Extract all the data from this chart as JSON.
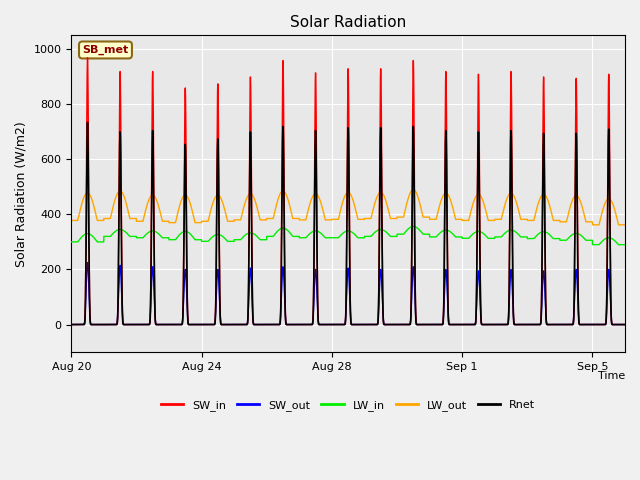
{
  "title": "Solar Radiation",
  "xlabel": "Time",
  "ylabel": "Solar Radiation (W/m2)",
  "ylim": [
    -100,
    1050
  ],
  "background_color": "#f0f0f0",
  "plot_bg_color": "#e8e8e8",
  "label_box_text": "SB_met",
  "label_box_color": "#ffffcc",
  "label_box_edge": "#8b6914",
  "series": {
    "SW_in": {
      "color": "#ff0000",
      "lw": 1.0
    },
    "SW_out": {
      "color": "#0000ff",
      "lw": 1.0
    },
    "LW_in": {
      "color": "#00ee00",
      "lw": 1.0
    },
    "LW_out": {
      "color": "#ffa500",
      "lw": 1.0
    },
    "Rnet": {
      "color": "#000000",
      "lw": 1.2
    }
  },
  "x_ticks": [
    0,
    4,
    8,
    12,
    16
  ],
  "x_tick_labels": [
    "Aug 20",
    "Aug 24",
    "Aug 28",
    "Sep 1",
    "Sep 5"
  ],
  "grid_color": "#ffffff",
  "num_days": 17,
  "SW_in_peak": [
    970,
    920,
    920,
    860,
    875,
    900,
    960,
    915,
    930,
    930,
    960,
    920,
    910,
    920,
    900,
    895,
    910
  ],
  "SW_out_peak": [
    225,
    215,
    210,
    200,
    200,
    205,
    210,
    200,
    205,
    200,
    210,
    200,
    195,
    200,
    195,
    200,
    200
  ],
  "LW_in_base": [
    300,
    320,
    315,
    308,
    302,
    308,
    320,
    315,
    315,
    320,
    328,
    318,
    313,
    318,
    312,
    306,
    290
  ],
  "LW_in_hump": [
    30,
    25,
    25,
    30,
    25,
    25,
    30,
    25,
    25,
    25,
    28,
    25,
    25,
    25,
    25,
    25,
    25
  ],
  "LW_out_base": [
    378,
    385,
    375,
    370,
    375,
    380,
    385,
    380,
    382,
    385,
    390,
    382,
    378,
    382,
    378,
    373,
    362
  ],
  "LW_out_hump": [
    100,
    100,
    95,
    100,
    95,
    95,
    100,
    95,
    98,
    95,
    100,
    95,
    95,
    95,
    95,
    95,
    95
  ],
  "Rnet_peak": [
    735,
    700,
    705,
    655,
    675,
    700,
    720,
    705,
    715,
    715,
    720,
    705,
    700,
    705,
    695,
    695,
    710
  ]
}
